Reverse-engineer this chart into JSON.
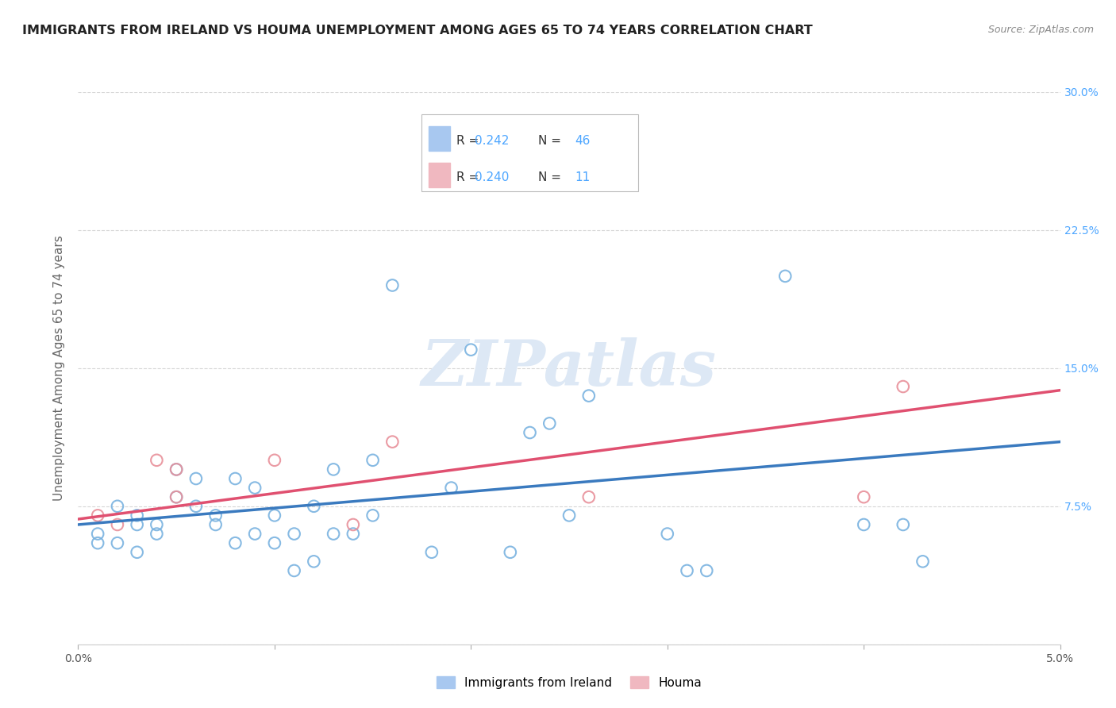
{
  "title": "IMMIGRANTS FROM IRELAND VS HOUMA UNEMPLOYMENT AMONG AGES 65 TO 74 YEARS CORRELATION CHART",
  "source": "Source: ZipAtlas.com",
  "ylabel": "Unemployment Among Ages 65 to 74 years",
  "xlim": [
    0.0,
    0.05
  ],
  "ylim": [
    0.0,
    0.3
  ],
  "xticks": [
    0.0,
    0.01,
    0.02,
    0.03,
    0.04,
    0.05
  ],
  "xtick_labels": [
    "0.0%",
    "",
    "",
    "",
    "",
    "5.0%"
  ],
  "yticks": [
    0.0,
    0.075,
    0.15,
    0.225,
    0.3
  ],
  "ytick_labels": [
    "",
    "7.5%",
    "15.0%",
    "22.5%",
    "30.0%"
  ],
  "series_ireland": {
    "color": "#7ab3e0",
    "x": [
      0.001,
      0.001,
      0.002,
      0.002,
      0.003,
      0.003,
      0.003,
      0.004,
      0.004,
      0.005,
      0.005,
      0.006,
      0.006,
      0.007,
      0.007,
      0.008,
      0.008,
      0.009,
      0.009,
      0.01,
      0.01,
      0.011,
      0.011,
      0.012,
      0.012,
      0.013,
      0.013,
      0.014,
      0.015,
      0.015,
      0.016,
      0.018,
      0.019,
      0.02,
      0.022,
      0.023,
      0.024,
      0.025,
      0.026,
      0.03,
      0.031,
      0.032,
      0.036,
      0.04,
      0.042,
      0.043
    ],
    "y": [
      0.055,
      0.06,
      0.075,
      0.055,
      0.07,
      0.065,
      0.05,
      0.06,
      0.065,
      0.08,
      0.095,
      0.09,
      0.075,
      0.065,
      0.07,
      0.09,
      0.055,
      0.085,
      0.06,
      0.07,
      0.055,
      0.06,
      0.04,
      0.045,
      0.075,
      0.095,
      0.06,
      0.06,
      0.07,
      0.1,
      0.195,
      0.05,
      0.085,
      0.16,
      0.05,
      0.115,
      0.12,
      0.07,
      0.135,
      0.06,
      0.04,
      0.04,
      0.2,
      0.065,
      0.065,
      0.045
    ],
    "trend_color": "#3a7abf",
    "trendline": {
      "x0": 0.0,
      "x1": 0.05,
      "y0": 0.065,
      "y1": 0.11
    }
  },
  "series_houma": {
    "color": "#e8909a",
    "x": [
      0.001,
      0.002,
      0.004,
      0.005,
      0.005,
      0.01,
      0.014,
      0.016,
      0.026,
      0.04,
      0.042
    ],
    "y": [
      0.07,
      0.065,
      0.1,
      0.095,
      0.08,
      0.1,
      0.065,
      0.11,
      0.08,
      0.08,
      0.14
    ],
    "trend_color": "#e05070",
    "trendline": {
      "x0": 0.0,
      "x1": 0.05,
      "y0": 0.068,
      "y1": 0.138
    }
  },
  "background_color": "#ffffff",
  "grid_color": "#cccccc",
  "title_color": "#222222",
  "axis_label_color": "#666666",
  "tick_color_right": "#4da6ff",
  "watermark": "ZIPatlas",
  "watermark_color": "#dde8f5",
  "legend_box": {
    "ireland_r": "0.242",
    "ireland_n": "46",
    "houma_r": "0.240",
    "houma_n": "11",
    "ireland_patch_color": "#a8c8f0",
    "houma_patch_color": "#f0b8c0"
  },
  "bottom_legend": [
    {
      "label": "Immigrants from Ireland",
      "color": "#a8c8f0"
    },
    {
      "label": "Houma",
      "color": "#f0b8c0"
    }
  ]
}
